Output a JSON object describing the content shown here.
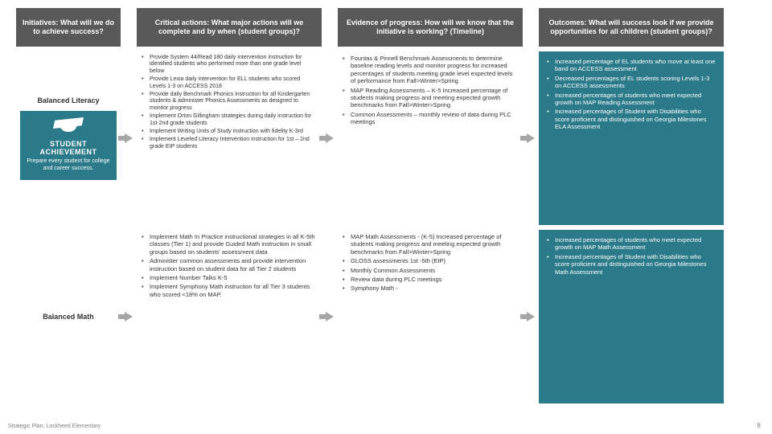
{
  "colors": {
    "header_bg": "#595959",
    "header_text": "#ffffff",
    "outcome_bg": "#2b7a8a",
    "outcome_text": "#ffffff",
    "body_text": "#333333",
    "arrow": "#a6a6a6",
    "page_bg": "#ffffff",
    "footer_text": "#808080"
  },
  "typography": {
    "font_family": "Arial, sans-serif",
    "header_fontsize_pt": 9,
    "body_fontsize_pt": 7.5,
    "small_fontsize_pt": 7,
    "footer_fontsize_pt": 7
  },
  "headers": {
    "initiatives": "Initiatives: What will we do to achieve success?",
    "actions": "Critical actions: What major actions will we complete and by when (student groups)?",
    "evidence": "Evidence of progress: How will we know that the initiative is working? (Timeline)",
    "outcomes": "Outcomes: What will success look if we provide opportunities for all children (student groups)?"
  },
  "student_achievement": {
    "title": "STUDENT ACHIEVEMENT",
    "subtitle": "Prepare every student for college and career success."
  },
  "rows": [
    {
      "initiative": "Balanced Literacy",
      "actions": [
        "Provide System 44/Read 180 daily intervention instruction for identified students who performed more than one grade level below",
        "Provide Lexia daily intervention for ELL students who scored Levels 1-3 on ACCESS 2018",
        "Provide daily Benchmark Phonics instruction for all Kindergarten students & administer Phonics Assessments as designed to monitor progress",
        "Implement Orton Gillingham strategies during daily instruction for 1st-2nd grade students",
        "Implement Writing Units of Study instruction with fidelity K-3rd",
        "Implement Leveled Literacy Intervention instruction for 1st – 2nd grade EIP students"
      ],
      "evidence": [
        "Fountas & Pinnell Benchmark Assessments to determine baseline reading levels and monitor progress for increased percentages of students meeting grade level expected levels of performance from Fall>Winter>Spring",
        "MAP Reading Assessments – K-5 Increased percentage of students making progress and meeting expected growth benchmarks from Fall>Winter>Spring",
        "Common Assessments – monthly review of data during PLC meetings"
      ],
      "outcomes": [
        "Increased percentage of EL students who move at least one band on ACCESS assessment",
        "Decreased percentages of EL students scoring Levels 1-3 on ACCESS assessments",
        "Increased percentages of students who meet expected growth on MAP Reading Assessment",
        "Increased percentages of Student with Disabilities who score proficient and distinguished on Georgia Milestones ELA Assessment"
      ]
    },
    {
      "initiative": "Balanced Math",
      "actions": [
        "Implement Math In Practice instructional strategies in all K-5th classes (Tier 1) and provide Guided Math instruction in small groups based on students' assessment data",
        "Administer common assessments and provide intervention instruction based on student data for all Tier 2 students",
        "Implement Number Talks K-5",
        "Implement Symphony Math instruction for all Tier 3 students who scored <18% on MAP."
      ],
      "evidence": [
        "MAP Math Assessments - (K-5) Increased percentage of students making progress and meeting expected growth benchmarks from Fall>Winter>Spring",
        "GLOSS assessments 1st -5th (EIP)",
        "Monthly Common Assessments",
        "Review data during PLC meetings",
        "Symphony Math -"
      ],
      "outcomes": [
        "Increased percentages of students who meet expected growth on MAP Math Assessment",
        "Increased percentages of Student with Disabilities who score proficient and distinguished on Georgia Milestones Math Assessment"
      ]
    }
  ],
  "footer": "Strategic Plan: Lockheed Elementary",
  "page_number": "8"
}
